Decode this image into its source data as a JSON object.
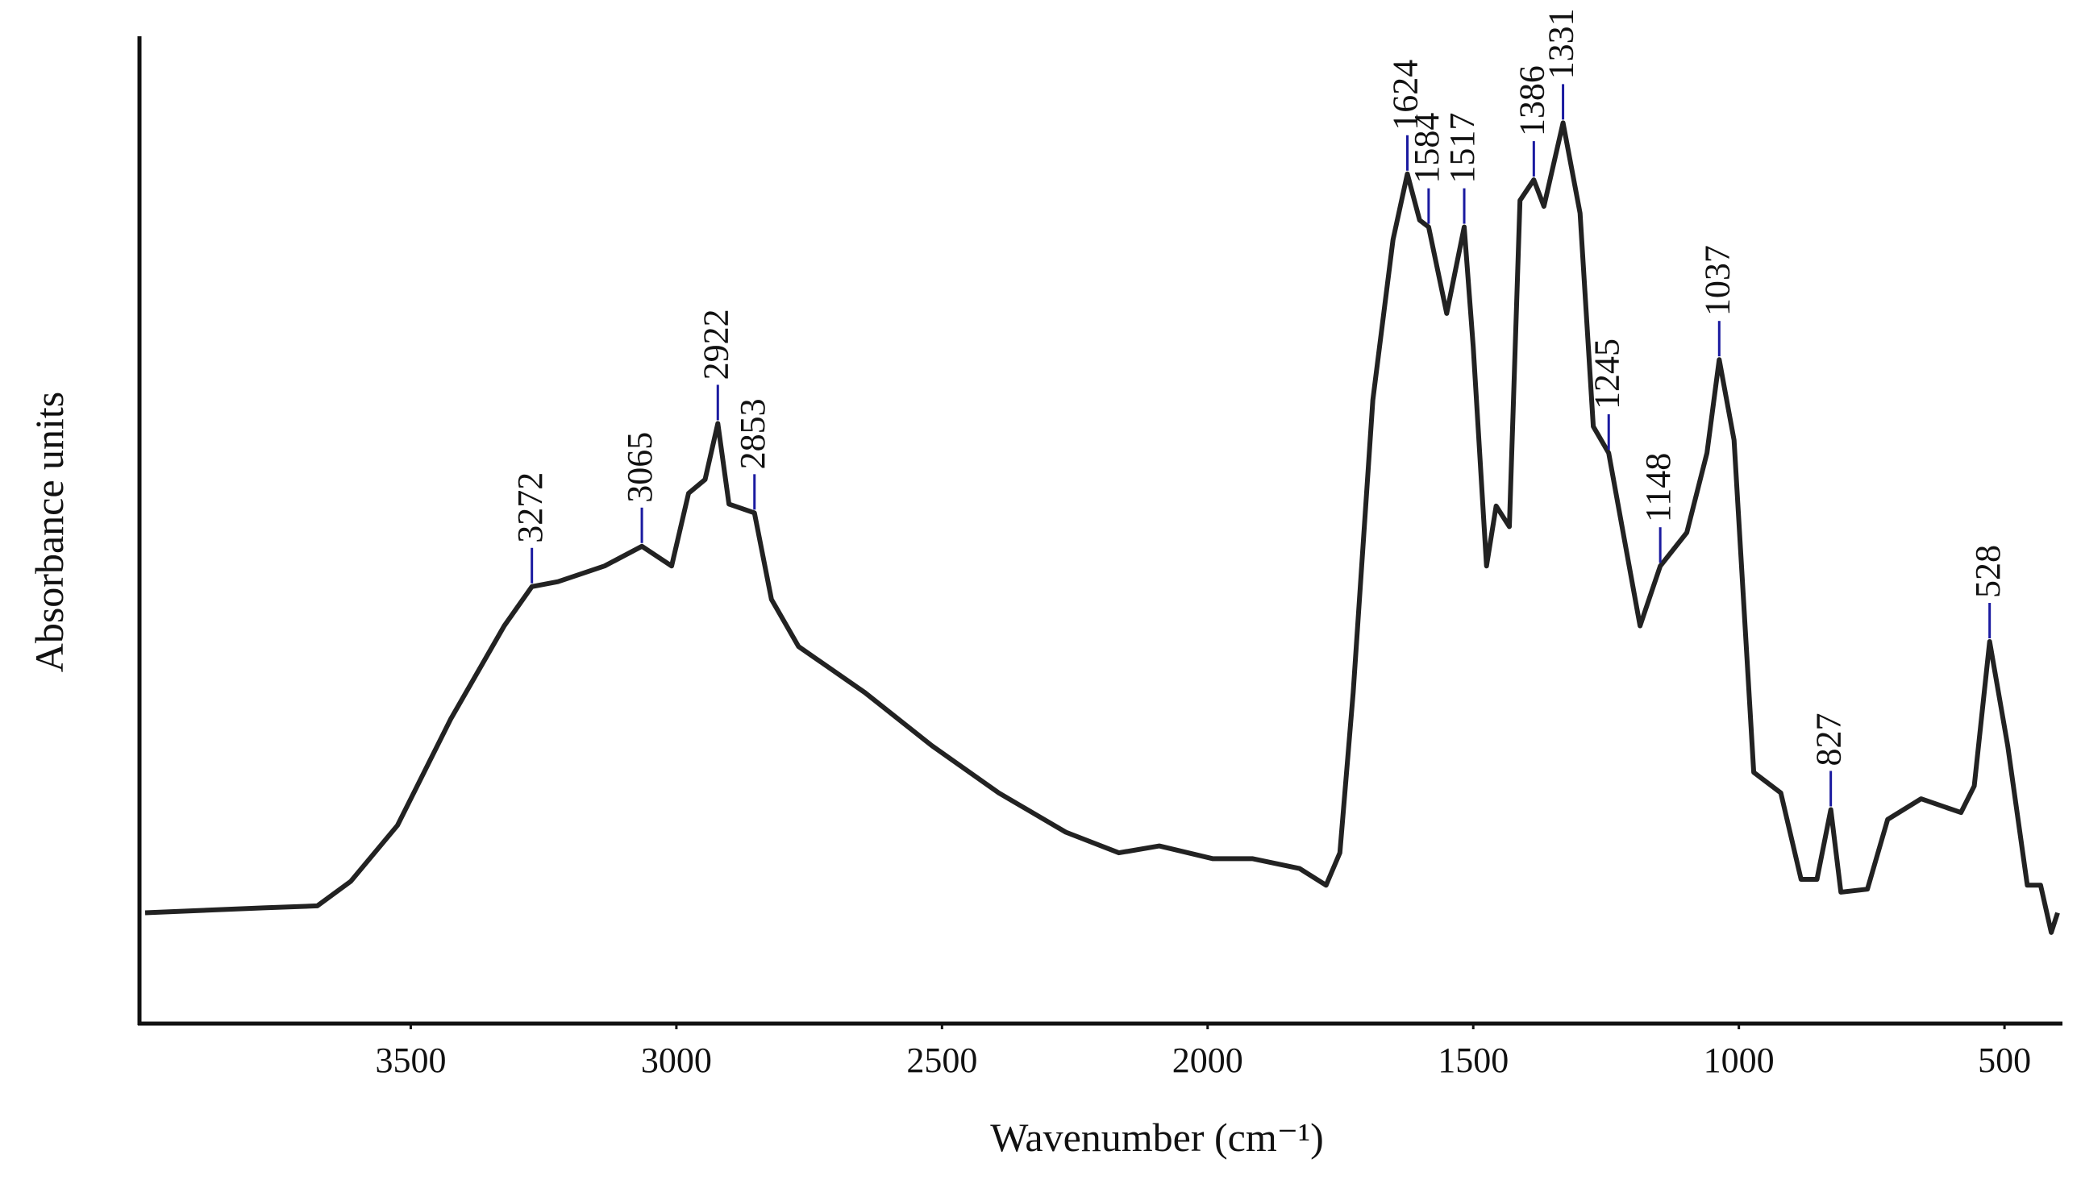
{
  "chart_data": {
    "type": "line",
    "y_label": "Absorbance units",
    "x_label": "Wavenumber (cm⁻¹)",
    "xlim": [
      4000,
      400
    ],
    "xticks": [
      3500,
      3000,
      2500,
      2000,
      1500,
      1000,
      500
    ],
    "ylim": [
      0,
      100
    ],
    "color": "#222222",
    "peak_color": "#1a1aa0",
    "x": [
      4000,
      3777,
      3676,
      3613,
      3525,
      3425,
      3324,
      3272,
      3223,
      3135,
      3065,
      3009,
      2977,
      2946,
      2922,
      2901,
      2853,
      2821,
      2770,
      2645,
      2519,
      2393,
      2267,
      2167,
      2091,
      1990,
      1915,
      1827,
      1777,
      1751,
      1726,
      1689,
      1651,
      1624,
      1601,
      1584,
      1550,
      1517,
      1500,
      1475,
      1457,
      1432,
      1412,
      1386,
      1367,
      1331,
      1299,
      1274,
      1245,
      1186,
      1148,
      1098,
      1060,
      1037,
      1009,
      972,
      921,
      883,
      853,
      827,
      808,
      758,
      720,
      657,
      582,
      557,
      528,
      494,
      457,
      432,
      412,
      400
    ],
    "values": [
      11.2,
      11.7,
      11.9,
      14.4,
      20.1,
      30.9,
      40.4,
      44.4,
      44.9,
      46.5,
      48.5,
      46.5,
      53.9,
      55.3,
      61.0,
      52.8,
      51.9,
      43.1,
      38.3,
      33.6,
      28.2,
      23.4,
      19.4,
      17.3,
      18.0,
      16.7,
      16.7,
      15.7,
      14.0,
      17.3,
      33.6,
      63.4,
      79.7,
      86.4,
      81.7,
      81.0,
      72.2,
      81.0,
      68.8,
      46.5,
      52.6,
      50.5,
      83.7,
      85.8,
      83.1,
      91.6,
      82.4,
      60.7,
      58.0,
      40.4,
      46.5,
      49.9,
      58.0,
      67.5,
      59.3,
      25.5,
      23.4,
      14.6,
      14.6,
      21.7,
      13.3,
      13.6,
      20.7,
      22.8,
      21.4,
      24.1,
      38.8,
      28.2,
      14.0,
      14.0,
      9.2,
      11.2
    ],
    "peaks": [
      3272,
      3065,
      2922,
      2853,
      1624,
      1584,
      1517,
      1386,
      1331,
      1245,
      1148,
      1037,
      827,
      528
    ]
  }
}
